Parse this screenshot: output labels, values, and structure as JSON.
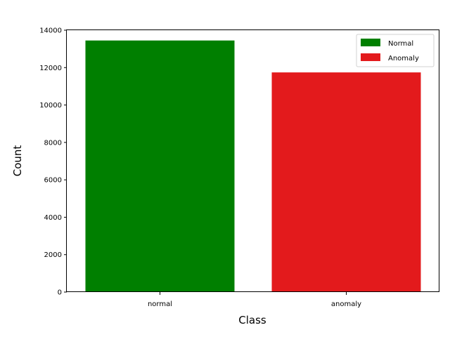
{
  "chart_data": {
    "type": "bar",
    "title": "",
    "xlabel": "Class",
    "ylabel": "Count",
    "categories": [
      "normal",
      "anomaly"
    ],
    "values": [
      13449,
      11743
    ],
    "colors": [
      "#007f00",
      "#e31a1c"
    ],
    "ylim": [
      0,
      14000
    ],
    "yticks": [
      0,
      2000,
      4000,
      6000,
      8000,
      10000,
      12000,
      14000
    ],
    "grid": false,
    "legend": {
      "placement": "top-right",
      "entries": [
        {
          "label": "Normal",
          "color": "#007f00"
        },
        {
          "label": "Anomaly",
          "color": "#e31a1c"
        }
      ]
    }
  }
}
